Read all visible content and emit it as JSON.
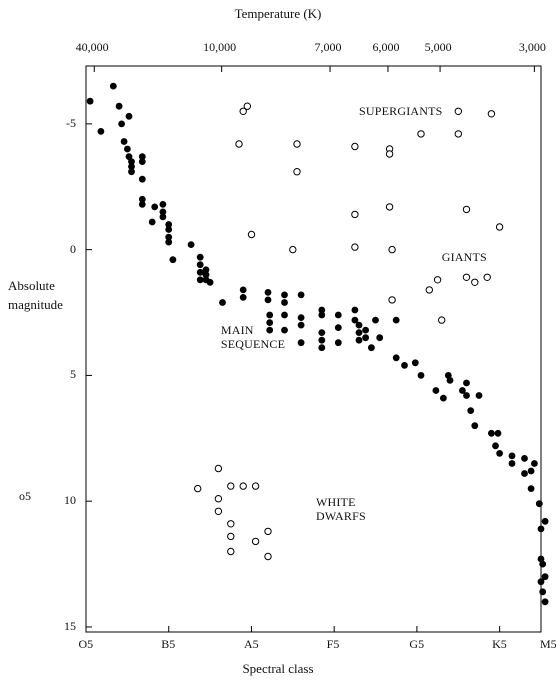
{
  "chart_data": {
    "type": "scatter",
    "title": "Temperature (K)",
    "xlabel": "Spectral class",
    "ylabel": [
      "Absolute",
      "magnitude"
    ],
    "side_label": "o5",
    "x_ticks": [
      "O5",
      "B5",
      "A5",
      "F5",
      "G5",
      "K5",
      "M5"
    ],
    "x_range": [
      0,
      5.5
    ],
    "y_ticks": [
      "-5",
      "0",
      "5",
      "10",
      "15"
    ],
    "y_tick_values": [
      -5,
      0,
      5,
      10,
      15
    ],
    "y_range": [
      -7.3,
      15.2
    ],
    "y_inverted": true,
    "top_ticks": [
      {
        "label": "40,000",
        "x": 0.1
      },
      {
        "label": "10,000",
        "x": 1.64
      },
      {
        "label": "7,000",
        "x": 2.95
      },
      {
        "label": "6,000",
        "x": 3.65
      },
      {
        "label": "5,000",
        "x": 4.28
      },
      {
        "label": "3,000",
        "x": 5.42
      }
    ],
    "annotations": [
      {
        "id": "supergiants",
        "lines": [
          "SUPERGIANTS"
        ],
        "x": 3.3,
        "y": -5.8
      },
      {
        "id": "giants",
        "lines": [
          "GIANTS"
        ],
        "x": 4.3,
        "y": 0.0
      },
      {
        "id": "main-sequence",
        "lines": [
          "MAIN",
          "SEQUENCE"
        ],
        "x": 1.63,
        "y": 2.9
      },
      {
        "id": "white-dwarfs",
        "lines": [
          "WHITE",
          "DWARFS"
        ],
        "x": 2.78,
        "y": 9.75
      }
    ],
    "series": [
      {
        "style": "filled",
        "points": [
          [
            0.33,
            -6.5
          ],
          [
            0.05,
            -5.9
          ],
          [
            0.18,
            -4.7
          ],
          [
            0.4,
            -5.7
          ],
          [
            0.52,
            -5.3
          ],
          [
            0.43,
            -5.0
          ],
          [
            0.46,
            -4.3
          ],
          [
            0.5,
            -4.0
          ],
          [
            0.52,
            -3.7
          ],
          [
            0.55,
            -3.5
          ],
          [
            0.55,
            -3.3
          ],
          [
            0.55,
            -3.1
          ],
          [
            0.68,
            -3.7
          ],
          [
            0.68,
            -3.5
          ],
          [
            0.68,
            -2.8
          ],
          [
            0.68,
            -2.0
          ],
          [
            0.68,
            -1.8
          ],
          [
            0.83,
            -1.7
          ],
          [
            0.93,
            -1.8
          ],
          [
            0.93,
            -1.5
          ],
          [
            0.93,
            -1.3
          ],
          [
            0.8,
            -1.1
          ],
          [
            1.0,
            -1.0
          ],
          [
            1.0,
            -0.8
          ],
          [
            1.0,
            -0.5
          ],
          [
            1.0,
            -0.3
          ],
          [
            1.05,
            0.4
          ],
          [
            1.27,
            -0.2
          ],
          [
            1.38,
            0.3
          ],
          [
            1.38,
            0.6
          ],
          [
            1.38,
            0.9
          ],
          [
            1.38,
            1.2
          ],
          [
            1.45,
            0.8
          ],
          [
            1.45,
            1.0
          ],
          [
            1.45,
            1.2
          ],
          [
            1.5,
            1.3
          ],
          [
            1.65,
            2.1
          ],
          [
            1.9,
            1.6
          ],
          [
            1.9,
            1.9
          ],
          [
            2.2,
            1.7
          ],
          [
            2.2,
            2.0
          ],
          [
            2.4,
            1.8
          ],
          [
            2.4,
            2.1
          ],
          [
            2.6,
            1.8
          ],
          [
            2.22,
            2.6
          ],
          [
            2.4,
            2.6
          ],
          [
            2.6,
            2.7
          ],
          [
            2.22,
            2.9
          ],
          [
            2.22,
            3.2
          ],
          [
            2.4,
            3.2
          ],
          [
            2.6,
            3.0
          ],
          [
            2.6,
            3.7
          ],
          [
            2.85,
            2.4
          ],
          [
            2.85,
            2.6
          ],
          [
            2.85,
            3.3
          ],
          [
            2.85,
            3.6
          ],
          [
            2.85,
            3.9
          ],
          [
            3.05,
            2.6
          ],
          [
            3.05,
            3.1
          ],
          [
            3.05,
            3.7
          ],
          [
            3.25,
            2.4
          ],
          [
            3.25,
            2.8
          ],
          [
            3.3,
            3.0
          ],
          [
            3.3,
            3.3
          ],
          [
            3.3,
            3.6
          ],
          [
            3.38,
            3.2
          ],
          [
            3.38,
            3.5
          ],
          [
            3.45,
            3.9
          ],
          [
            3.5,
            2.8
          ],
          [
            3.55,
            3.5
          ],
          [
            3.75,
            2.8
          ],
          [
            3.75,
            4.3
          ],
          [
            3.85,
            4.6
          ],
          [
            3.98,
            4.5
          ],
          [
            4.05,
            5.0
          ],
          [
            4.23,
            5.6
          ],
          [
            4.32,
            5.9
          ],
          [
            4.38,
            5.0
          ],
          [
            4.4,
            5.2
          ],
          [
            4.55,
            5.6
          ],
          [
            4.6,
            5.3
          ],
          [
            4.6,
            5.8
          ],
          [
            4.65,
            6.4
          ],
          [
            4.7,
            7.0
          ],
          [
            4.75,
            5.8
          ],
          [
            4.9,
            7.3
          ],
          [
            4.95,
            7.8
          ],
          [
            4.98,
            7.3
          ],
          [
            5.0,
            8.1
          ],
          [
            5.15,
            8.2
          ],
          [
            5.15,
            8.5
          ],
          [
            5.3,
            8.3
          ],
          [
            5.3,
            8.9
          ],
          [
            5.38,
            8.8
          ],
          [
            5.38,
            9.5
          ],
          [
            5.42,
            8.5
          ],
          [
            5.48,
            10.1
          ],
          [
            5.5,
            11.1
          ],
          [
            5.55,
            10.8
          ],
          [
            5.5,
            12.3
          ],
          [
            5.5,
            13.2
          ],
          [
            5.52,
            12.5
          ],
          [
            5.55,
            13.0
          ],
          [
            5.52,
            13.6
          ],
          [
            5.55,
            14.0
          ]
        ]
      },
      {
        "style": "open",
        "points": [
          [
            1.95,
            -5.7
          ],
          [
            1.9,
            -5.5
          ],
          [
            1.85,
            -4.2
          ],
          [
            2.55,
            -4.2
          ],
          [
            2.55,
            -3.1
          ],
          [
            3.25,
            -4.1
          ],
          [
            3.67,
            -4.0
          ],
          [
            3.67,
            -3.8
          ],
          [
            4.05,
            -4.6
          ],
          [
            4.5,
            -5.5
          ],
          [
            4.5,
            -4.6
          ],
          [
            4.9,
            -5.4
          ],
          [
            3.67,
            -1.7
          ],
          [
            3.25,
            -1.4
          ],
          [
            4.6,
            -1.6
          ],
          [
            5.0,
            -0.9
          ],
          [
            2.0,
            -0.6
          ],
          [
            2.5,
            0.0
          ],
          [
            3.25,
            -0.1
          ],
          [
            3.7,
            0.0
          ],
          [
            4.25,
            1.2
          ],
          [
            4.6,
            1.1
          ],
          [
            4.7,
            1.3
          ],
          [
            4.85,
            1.1
          ],
          [
            3.7,
            2.0
          ],
          [
            4.15,
            1.6
          ],
          [
            4.3,
            2.8
          ],
          [
            1.6,
            8.7
          ],
          [
            1.35,
            9.5
          ],
          [
            1.75,
            9.4
          ],
          [
            1.9,
            9.4
          ],
          [
            2.05,
            9.4
          ],
          [
            1.6,
            9.9
          ],
          [
            1.6,
            10.4
          ],
          [
            1.75,
            10.9
          ],
          [
            1.75,
            11.4
          ],
          [
            1.75,
            12.0
          ],
          [
            2.05,
            11.6
          ],
          [
            2.2,
            11.2
          ],
          [
            2.2,
            12.2
          ]
        ]
      }
    ]
  }
}
